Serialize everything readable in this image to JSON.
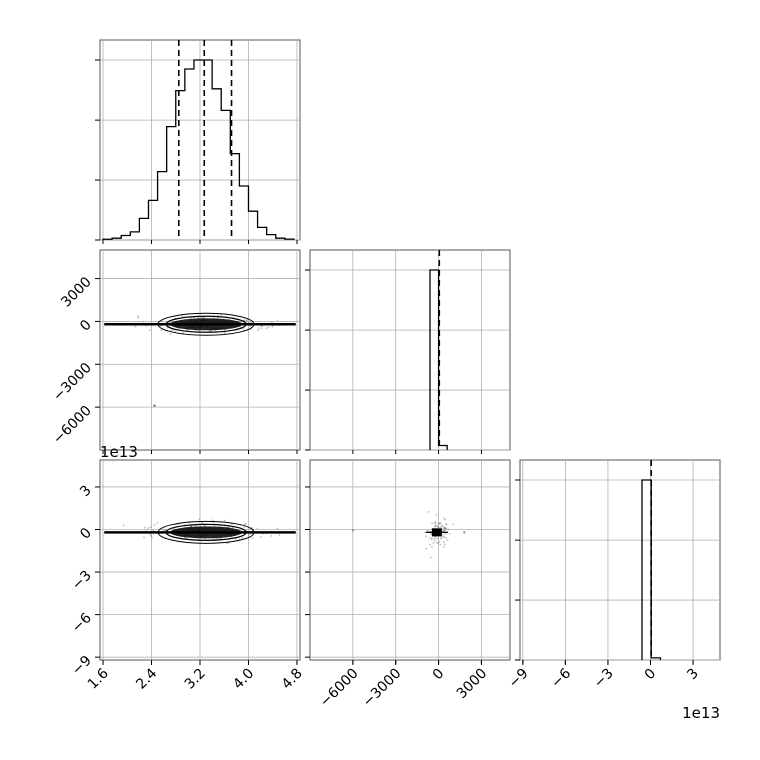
{
  "chart_data": {
    "type": "corner",
    "parameters": [
      {
        "ticks": [
          "1.6",
          "2.4",
          "3.2",
          "4.0",
          "4.8"
        ],
        "range": [
          1.55,
          4.85
        ],
        "quantiles": [
          2.85,
          3.27,
          3.72
        ],
        "hist": {
          "edges": [
            1.6,
            1.75,
            1.9,
            2.05,
            2.2,
            2.35,
            2.5,
            2.65,
            2.8,
            2.95,
            3.1,
            3.25,
            3.4,
            3.55,
            3.7,
            3.85,
            4.0,
            4.15,
            4.3,
            4.45,
            4.6,
            4.75
          ],
          "counts": [
            0.4,
            1.0,
            2.5,
            4.5,
            12,
            22,
            38,
            63,
            83,
            95,
            100,
            100,
            84,
            72,
            48,
            30,
            16,
            7,
            3,
            1,
            0.5
          ]
        }
      },
      {
        "ticks": [
          "−6000",
          "−3000",
          "0",
          "3000"
        ],
        "range": [
          -9000,
          5000
        ],
        "quantiles": [
          50
        ],
        "hist": {
          "edges": [
            -600,
            0,
            600
          ],
          "counts": [
            100,
            2.5
          ]
        }
      },
      {
        "ticks": [
          "−9",
          "−6",
          "−3",
          "0",
          "3"
        ],
        "offset_text": "1e13",
        "range": [
          -9.2,
          4.9
        ],
        "quantiles": [
          0.05
        ],
        "hist": {
          "edges": [
            -0.6,
            0.05,
            0.7
          ],
          "counts": [
            100,
            1.2
          ]
        }
      }
    ],
    "panels": [
      {
        "row": 1,
        "col": 0,
        "y_ticks": [
          "3000",
          "0",
          "−3000",
          "−6000"
        ],
        "contour_center": [
          3.3,
          -200
        ],
        "outlier": [
          2.45,
          -5900
        ]
      },
      {
        "row": 2,
        "col": 0,
        "y_ticks": [
          "3",
          "0",
          "−3",
          "−6",
          "−9"
        ],
        "y_offset_text": "1e13",
        "contour_center": [
          3.3,
          -0.2
        ]
      },
      {
        "row": 2,
        "col": 1,
        "contour_center": [
          -50,
          -0.2
        ]
      }
    ],
    "grid": true
  }
}
